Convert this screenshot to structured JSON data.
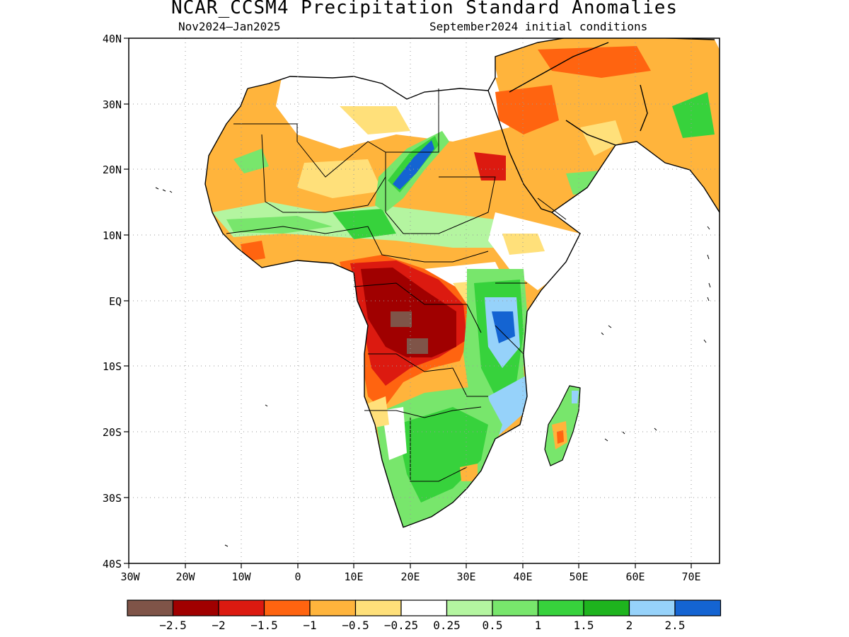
{
  "title": "NCAR_CCSM4 Precipitation Standard Anomalies",
  "subtitle_left": "Nov2024–Jan2025",
  "subtitle_right": "September2024 initial conditions",
  "lat_ticks": [
    "40N",
    "30N",
    "20N",
    "10N",
    "EQ",
    "10S",
    "20S",
    "30S",
    "40S"
  ],
  "lon_ticks": [
    "30W",
    "20W",
    "10W",
    "0",
    "10E",
    "20E",
    "30E",
    "40E",
    "50E",
    "60E",
    "70E"
  ],
  "colorbar": {
    "colors": [
      "#7f5448",
      "#a00000",
      "#dc1a10",
      "#ff6410",
      "#ffb43c",
      "#ffe07a",
      "#ffffff",
      "#b4f5a0",
      "#78e66c",
      "#37d23c",
      "#1eb41e",
      "#96d2fa",
      "#1464d2"
    ],
    "labels": [
      "−2.5",
      "−2",
      "−1.5",
      "−1",
      "−0.5",
      "−0.25",
      "0.25",
      "0.5",
      "1",
      "1.5",
      "2",
      "2.5"
    ]
  }
}
